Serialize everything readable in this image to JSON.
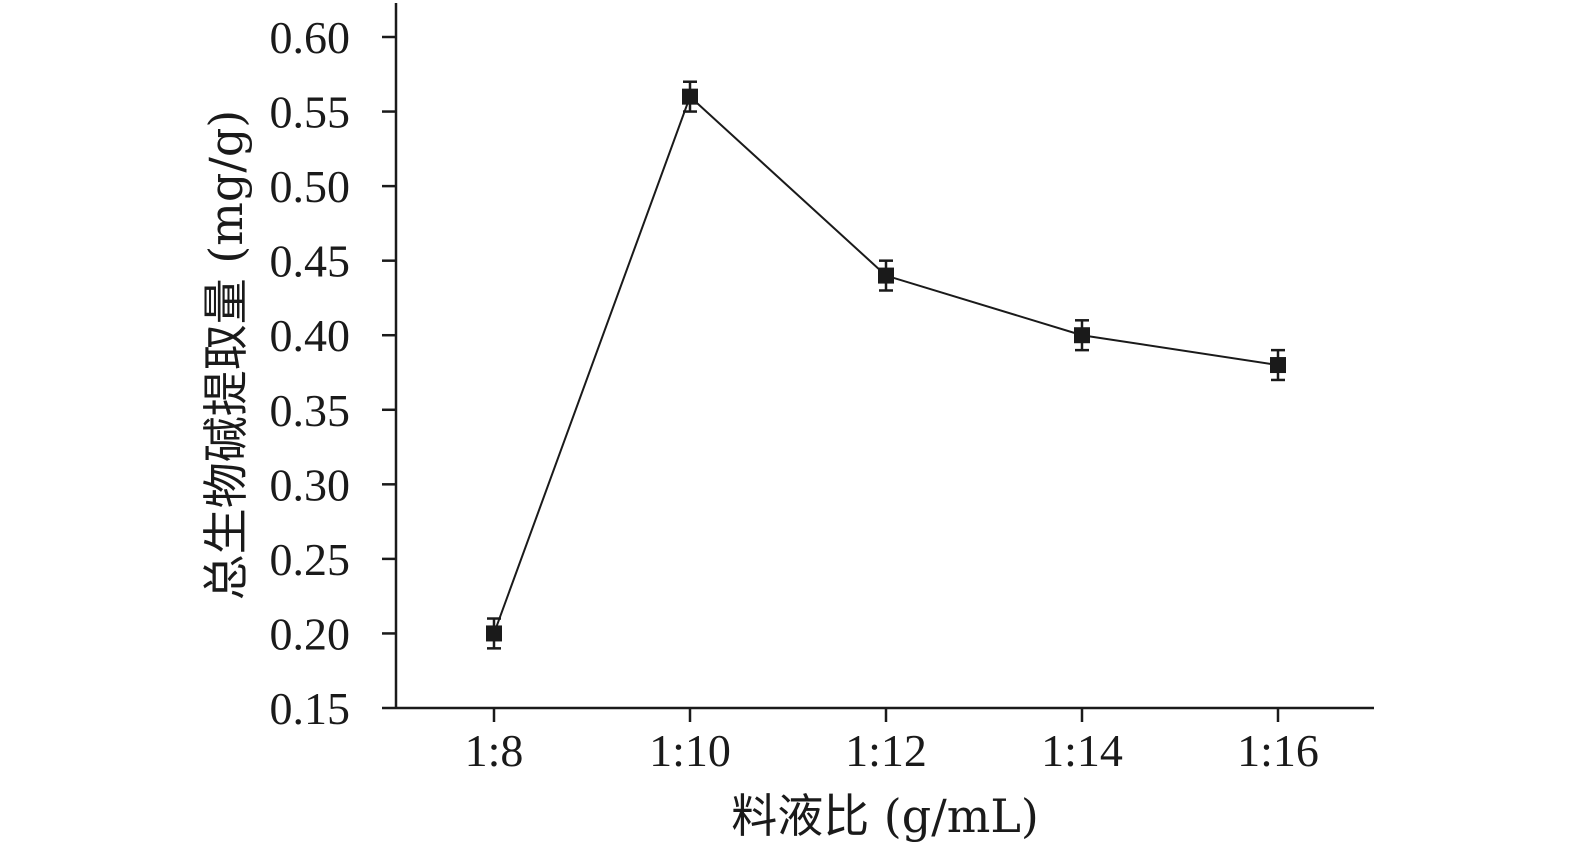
{
  "chart_data": {
    "type": "line",
    "xlabel": "料液比 (g/mL)",
    "ylabel": "总生物碱提取量 (mg/g)",
    "categories": [
      "1:8",
      "1:10",
      "1:12",
      "1:14",
      "1:16"
    ],
    "series": [
      {
        "values": [
          0.2,
          0.56,
          0.44,
          0.4,
          0.38
        ],
        "errors": [
          0.01,
          0.01,
          0.01,
          0.01,
          0.01
        ]
      }
    ],
    "ylim": [
      0.15,
      0.62
    ],
    "yticks": [
      0.15,
      0.2,
      0.25,
      0.3,
      0.35,
      0.4,
      0.45,
      0.5,
      0.55,
      0.6
    ],
    "ytick_labels": [
      "0.15",
      "0.20",
      "0.25",
      "0.30",
      "0.35",
      "0.40",
      "0.45",
      "0.50",
      "0.55",
      "0.60"
    ],
    "grid": false,
    "marker": "square",
    "colors": {
      "ink": "#1a1a1a"
    }
  }
}
